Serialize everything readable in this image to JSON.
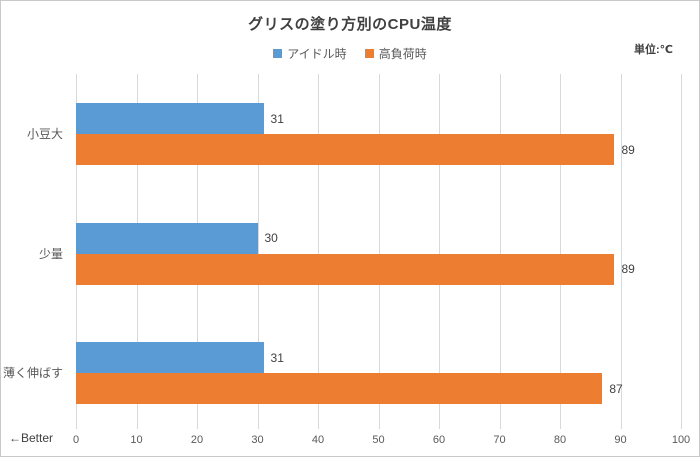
{
  "chart_data": {
    "type": "bar",
    "orientation": "horizontal",
    "title": "グリスの塗り方別のCPU温度",
    "unit_label": "単位:℃",
    "better_label": "←Better",
    "categories": [
      "小豆大",
      "少量",
      "薄く伸ばす"
    ],
    "series": [
      {
        "name": "アイドル時",
        "color": "#5B9BD5",
        "values": [
          31,
          30,
          31
        ]
      },
      {
        "name": "高負荷時",
        "color": "#ED7D31",
        "values": [
          89,
          89,
          87
        ]
      }
    ],
    "xlim": [
      0,
      100
    ],
    "xticks": [
      0,
      10,
      20,
      30,
      40,
      50,
      60,
      70,
      80,
      90,
      100
    ],
    "grid": true,
    "legend_position": "top",
    "colors": {
      "idle_blue": "#5B9BD5",
      "load_orange": "#ED7D31",
      "gridline": "#d9d9d9",
      "title_text": "#404040",
      "axis_text": "#595959"
    }
  }
}
